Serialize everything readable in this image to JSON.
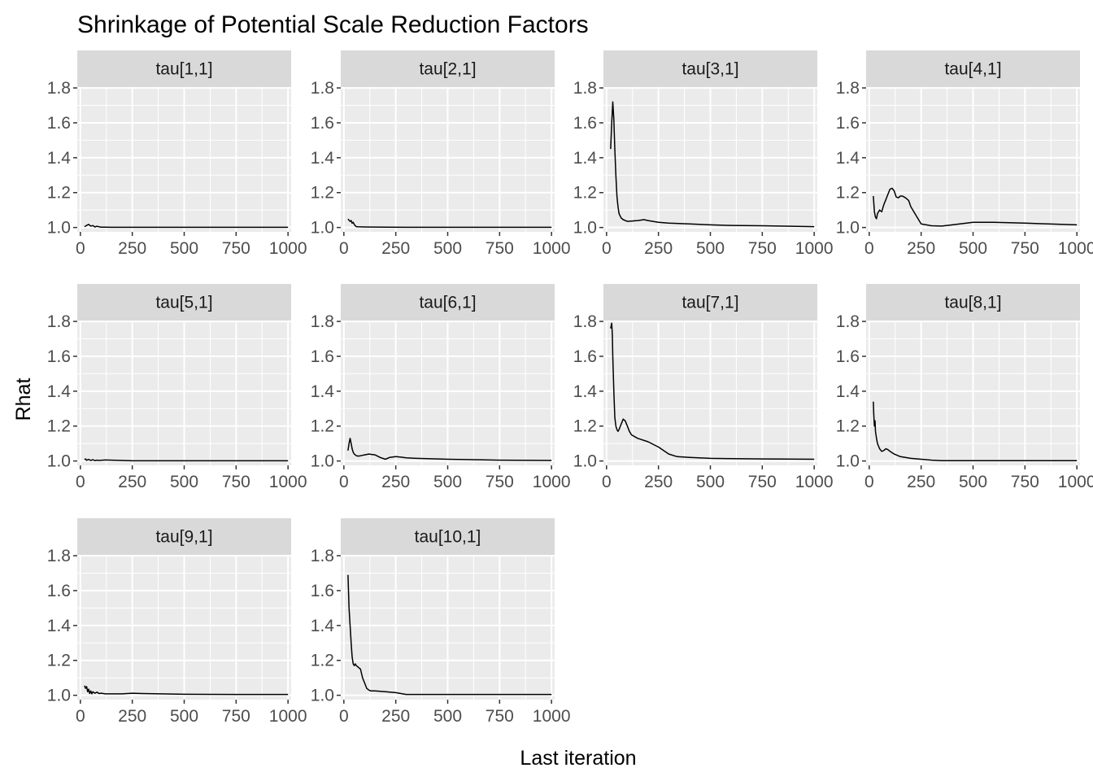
{
  "chart_data": {
    "type": "line",
    "title": "Shrinkage of Potential Scale Reduction Factors",
    "xlabel": "Last iteration",
    "ylabel": "Rhat",
    "xlim": [
      -15,
      1015
    ],
    "ylim": [
      0.975,
      1.805
    ],
    "x_ticks": [
      0,
      250,
      500,
      750,
      1000
    ],
    "x_tick_labels": [
      "0",
      "250",
      "500",
      "750",
      "1000"
    ],
    "y_ticks": [
      1.0,
      1.2,
      1.4,
      1.6,
      1.8
    ],
    "y_tick_labels": [
      "1.0",
      "1.2",
      "1.4",
      "1.6",
      "1.8"
    ],
    "grid": true,
    "colors": {
      "panel_bg": "#ebebeb",
      "strip_bg": "#d9d9d9",
      "grid": "#ffffff",
      "line": "#000000",
      "tick_text": "#4d4d4d"
    },
    "panels": [
      {
        "label": "tau[1,1]",
        "x": [
          20,
          30,
          40,
          50,
          60,
          70,
          80,
          90,
          100,
          120,
          150,
          200,
          300,
          500,
          750,
          1000
        ],
        "y": [
          1.005,
          1.012,
          1.018,
          1.008,
          1.011,
          1.003,
          1.007,
          1.004,
          1.002,
          1.002,
          1.001,
          1.001,
          1.001,
          1.001,
          1.001,
          1.001
        ]
      },
      {
        "label": "tau[2,1]",
        "x": [
          20,
          30,
          35,
          40,
          45,
          50,
          55,
          60,
          70,
          100,
          200,
          300,
          500,
          750,
          1000
        ],
        "y": [
          1.048,
          1.035,
          1.04,
          1.025,
          1.03,
          1.018,
          1.01,
          1.005,
          1.004,
          1.003,
          1.002,
          1.001,
          1.001,
          1.001,
          1.001
        ]
      },
      {
        "label": "tau[3,1]",
        "x": [
          20,
          25,
          30,
          35,
          40,
          45,
          50,
          55,
          60,
          70,
          80,
          100,
          150,
          180,
          200,
          250,
          300,
          400,
          500,
          600,
          750,
          1000
        ],
        "y": [
          1.45,
          1.6,
          1.72,
          1.62,
          1.45,
          1.3,
          1.18,
          1.12,
          1.08,
          1.055,
          1.045,
          1.035,
          1.04,
          1.045,
          1.04,
          1.03,
          1.025,
          1.02,
          1.015,
          1.012,
          1.01,
          1.005
        ]
      },
      {
        "label": "tau[4,1]",
        "x": [
          20,
          25,
          30,
          35,
          40,
          50,
          60,
          70,
          80,
          90,
          100,
          110,
          120,
          130,
          140,
          150,
          160,
          175,
          190,
          200,
          220,
          250,
          300,
          350,
          400,
          500,
          600,
          750,
          1000
        ],
        "y": [
          1.18,
          1.09,
          1.06,
          1.05,
          1.08,
          1.1,
          1.09,
          1.13,
          1.16,
          1.19,
          1.22,
          1.225,
          1.21,
          1.175,
          1.17,
          1.18,
          1.18,
          1.17,
          1.155,
          1.12,
          1.08,
          1.02,
          1.01,
          1.008,
          1.015,
          1.03,
          1.03,
          1.025,
          1.015
        ]
      },
      {
        "label": "tau[5,1]",
        "x": [
          20,
          25,
          30,
          40,
          50,
          60,
          70,
          80,
          90,
          100,
          120,
          150,
          200,
          250,
          300,
          500,
          750,
          1000
        ],
        "y": [
          1.008,
          1.012,
          1.004,
          1.009,
          1.003,
          1.007,
          1.002,
          1.005,
          1.003,
          1.004,
          1.006,
          1.005,
          1.003,
          1.001,
          1.001,
          1.001,
          1.001,
          1.001
        ]
      },
      {
        "label": "tau[6,1]",
        "x": [
          20,
          25,
          30,
          35,
          40,
          45,
          50,
          60,
          70,
          80,
          100,
          120,
          150,
          175,
          200,
          220,
          250,
          275,
          300,
          350,
          500,
          750,
          1000
        ],
        "y": [
          1.06,
          1.1,
          1.13,
          1.1,
          1.07,
          1.05,
          1.04,
          1.03,
          1.028,
          1.03,
          1.035,
          1.04,
          1.035,
          1.02,
          1.01,
          1.02,
          1.025,
          1.022,
          1.018,
          1.015,
          1.01,
          1.005,
          1.003
        ]
      },
      {
        "label": "tau[7,1]",
        "x": [
          20,
          25,
          28,
          30,
          35,
          40,
          45,
          50,
          55,
          60,
          70,
          80,
          90,
          100,
          110,
          120,
          150,
          200,
          250,
          300,
          340,
          400,
          500,
          750,
          1000
        ],
        "y": [
          1.76,
          1.79,
          1.72,
          1.6,
          1.4,
          1.25,
          1.2,
          1.18,
          1.17,
          1.18,
          1.21,
          1.24,
          1.23,
          1.2,
          1.17,
          1.15,
          1.13,
          1.11,
          1.08,
          1.04,
          1.025,
          1.02,
          1.015,
          1.012,
          1.01
        ]
      },
      {
        "label": "tau[8,1]",
        "x": [
          20,
          22,
          25,
          28,
          30,
          35,
          40,
          50,
          60,
          70,
          80,
          90,
          100,
          120,
          150,
          200,
          250,
          300,
          350,
          500,
          750,
          1000
        ],
        "y": [
          1.34,
          1.27,
          1.2,
          1.23,
          1.17,
          1.13,
          1.1,
          1.07,
          1.055,
          1.06,
          1.07,
          1.065,
          1.055,
          1.04,
          1.025,
          1.015,
          1.01,
          1.005,
          1.002,
          1.002,
          1.002,
          1.002
        ]
      },
      {
        "label": "tau[9,1]",
        "x": [
          20,
          25,
          30,
          35,
          40,
          45,
          50,
          55,
          60,
          70,
          80,
          90,
          100,
          120,
          150,
          200,
          250,
          300,
          500,
          750,
          1000
        ],
        "y": [
          1.055,
          1.04,
          1.05,
          1.02,
          1.035,
          1.01,
          1.025,
          1.008,
          1.02,
          1.012,
          1.018,
          1.01,
          1.012,
          1.008,
          1.008,
          1.008,
          1.012,
          1.01,
          1.006,
          1.005,
          1.005
        ]
      },
      {
        "label": "tau[10,1]",
        "x": [
          20,
          25,
          30,
          35,
          40,
          45,
          50,
          55,
          60,
          70,
          80,
          90,
          100,
          110,
          120,
          130,
          150,
          200,
          250,
          300,
          500,
          750,
          1000
        ],
        "y": [
          1.69,
          1.5,
          1.4,
          1.3,
          1.22,
          1.18,
          1.17,
          1.18,
          1.17,
          1.16,
          1.15,
          1.1,
          1.07,
          1.04,
          1.03,
          1.025,
          1.025,
          1.02,
          1.015,
          1.005,
          1.005,
          1.005,
          1.005
        ]
      }
    ]
  }
}
